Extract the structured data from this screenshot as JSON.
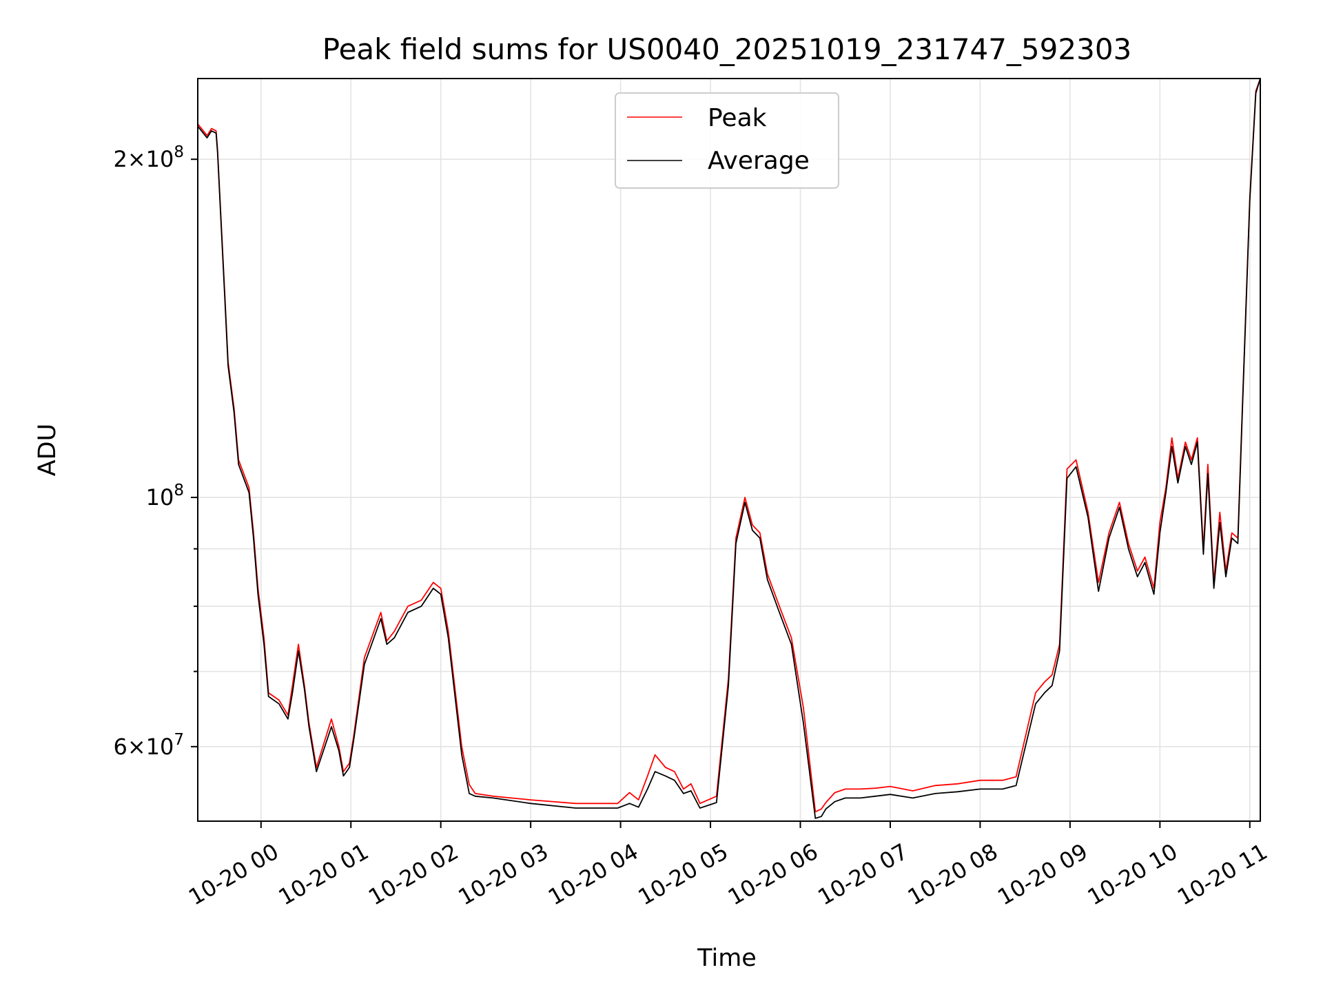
{
  "chart_data": {
    "type": "line",
    "title": "Peak field sums for US0040_20251019_231747_592303",
    "xlabel": "Time",
    "ylabel": "ADU",
    "y_scale": "log",
    "ylim": [
      51500000,
      236000000
    ],
    "xlim": [
      "2025-10-19 23:17:47",
      "2025-10-20 11:07:00"
    ],
    "grid": true,
    "legend_position": "upper-center",
    "x_ticks": [
      "10-20 00",
      "10-20 01",
      "10-20 02",
      "10-20 03",
      "10-20 04",
      "10-20 05",
      "10-20 06",
      "10-20 07",
      "10-20 08",
      "10-20 09",
      "10-20 10",
      "10-20 11"
    ],
    "x_tick_times": [
      "2025-10-20 00:00",
      "2025-10-20 01:00",
      "2025-10-20 02:00",
      "2025-10-20 03:00",
      "2025-10-20 04:00",
      "2025-10-20 05:00",
      "2025-10-20 06:00",
      "2025-10-20 07:00",
      "2025-10-20 08:00",
      "2025-10-20 09:00",
      "2025-10-20 10:00",
      "2025-10-20 11:00"
    ],
    "y_ticks": [
      {
        "value": 200000000,
        "mantissa": "2",
        "exponent": "8"
      },
      {
        "value": 100000000,
        "mantissa": "",
        "exponent": "8"
      },
      {
        "value": 60000000,
        "mantissa": "6",
        "exponent": "7"
      }
    ],
    "y_minor_ticks": [
      70000000,
      80000000,
      90000000
    ],
    "series": [
      {
        "name": "Peak",
        "color": "#ff0000",
        "x": [
          "2025-10-19 23:17:47",
          "2025-10-19 23:24",
          "2025-10-19 23:27",
          "2025-10-19 23:30",
          "2025-10-19 23:31",
          "2025-10-19 23:36",
          "2025-10-19 23:38",
          "2025-10-19 23:42",
          "2025-10-19 23:45",
          "2025-10-19 23:52",
          "2025-10-19 23:55",
          "2025-10-19 23:58",
          "2025-10-20 00:02",
          "2025-10-20 00:05",
          "2025-10-20 00:12",
          "2025-10-20 00:18",
          "2025-10-20 00:21",
          "2025-10-20 00:25",
          "2025-10-20 00:29",
          "2025-10-20 00:32",
          "2025-10-20 00:37",
          "2025-10-20 00:47",
          "2025-10-20 00:52",
          "2025-10-20 00:55",
          "2025-10-20 00:59",
          "2025-10-20 01:02",
          "2025-10-20 01:09",
          "2025-10-20 01:20",
          "2025-10-20 01:24",
          "2025-10-20 01:29",
          "2025-10-20 01:38",
          "2025-10-20 01:47",
          "2025-10-20 01:55",
          "2025-10-20 02:00",
          "2025-10-20 02:05",
          "2025-10-20 02:14",
          "2025-10-20 02:19",
          "2025-10-20 02:23",
          "2025-10-20 02:35",
          "2025-10-20 03:00",
          "2025-10-20 03:30",
          "2025-10-20 03:58",
          "2025-10-20 04:06",
          "2025-10-20 04:12",
          "2025-10-20 04:18",
          "2025-10-20 04:23",
          "2025-10-20 04:30",
          "2025-10-20 04:36",
          "2025-10-20 04:42",
          "2025-10-20 04:47",
          "2025-10-20 04:53",
          "2025-10-20 05:04",
          "2025-10-20 05:12",
          "2025-10-20 05:17",
          "2025-10-20 05:23",
          "2025-10-20 05:28",
          "2025-10-20 05:33",
          "2025-10-20 05:38",
          "2025-10-20 05:46",
          "2025-10-20 05:54",
          "2025-10-20 06:02",
          "2025-10-20 06:10",
          "2025-10-20 06:14",
          "2025-10-20 06:17",
          "2025-10-20 06:23",
          "2025-10-20 06:30",
          "2025-10-20 06:40",
          "2025-10-20 06:50",
          "2025-10-20 07:00",
          "2025-10-20 07:15",
          "2025-10-20 07:30",
          "2025-10-20 07:45",
          "2025-10-20 08:00",
          "2025-10-20 08:15",
          "2025-10-20 08:24",
          "2025-10-20 08:37",
          "2025-10-20 08:43",
          "2025-10-20 08:48",
          "2025-10-20 08:53",
          "2025-10-20 08:58",
          "2025-10-20 09:04",
          "2025-10-20 09:12",
          "2025-10-20 09:19",
          "2025-10-20 09:26",
          "2025-10-20 09:33",
          "2025-10-20 09:39",
          "2025-10-20 09:45",
          "2025-10-20 09:50",
          "2025-10-20 09:56",
          "2025-10-20 10:00",
          "2025-10-20 10:04",
          "2025-10-20 10:08",
          "2025-10-20 10:12",
          "2025-10-20 10:17",
          "2025-10-20 10:21",
          "2025-10-20 10:25",
          "2025-10-20 10:29",
          "2025-10-20 10:32",
          "2025-10-20 10:36",
          "2025-10-20 10:40",
          "2025-10-20 10:44",
          "2025-10-20 10:48",
          "2025-10-20 10:52",
          "2025-10-20 10:55",
          "2025-10-20 11:00",
          "2025-10-20 11:04",
          "2025-10-20 11:07"
        ],
        "values": [
          215000000,
          210000000,
          213000000,
          212000000,
          204000000,
          150000000,
          132000000,
          120000000,
          108000000,
          102000000,
          93000000,
          83000000,
          75000000,
          67000000,
          66000000,
          64000000,
          68000000,
          74000000,
          68000000,
          63000000,
          57500000,
          63500000,
          60000000,
          57000000,
          58000000,
          61500000,
          72000000,
          79000000,
          74500000,
          76000000,
          80000000,
          81000000,
          84000000,
          83000000,
          76000000,
          60000000,
          55500000,
          54500000,
          54200000,
          53800000,
          53400000,
          53400000,
          54600000,
          53800000,
          56500000,
          59000000,
          57500000,
          57000000,
          55000000,
          55600000,
          53400000,
          54200000,
          69000000,
          92000000,
          100000000,
          94500000,
          93000000,
          85500000,
          80000000,
          75000000,
          65000000,
          52500000,
          52800000,
          53500000,
          54600000,
          55000000,
          55000000,
          55100000,
          55300000,
          54800000,
          55400000,
          55600000,
          56000000,
          56000000,
          56400000,
          67000000,
          68500000,
          69500000,
          74000000,
          106000000,
          108000000,
          97000000,
          84000000,
          93000000,
          99000000,
          91000000,
          86000000,
          88500000,
          83000000,
          95000000,
          102000000,
          113000000,
          104000000,
          112000000,
          108000000,
          113000000,
          90000000,
          107000000,
          84000000,
          97000000,
          86000000,
          93000000,
          92000000,
          120000000,
          185000000,
          230000000,
          236000000
        ]
      },
      {
        "name": "Average",
        "color": "#000000",
        "x": [
          "2025-10-19 23:17:47",
          "2025-10-19 23:24",
          "2025-10-19 23:27",
          "2025-10-19 23:30",
          "2025-10-19 23:31",
          "2025-10-19 23:36",
          "2025-10-19 23:38",
          "2025-10-19 23:42",
          "2025-10-19 23:45",
          "2025-10-19 23:52",
          "2025-10-19 23:55",
          "2025-10-19 23:58",
          "2025-10-20 00:02",
          "2025-10-20 00:05",
          "2025-10-20 00:12",
          "2025-10-20 00:18",
          "2025-10-20 00:21",
          "2025-10-20 00:25",
          "2025-10-20 00:29",
          "2025-10-20 00:32",
          "2025-10-20 00:37",
          "2025-10-20 00:47",
          "2025-10-20 00:52",
          "2025-10-20 00:55",
          "2025-10-20 00:59",
          "2025-10-20 01:02",
          "2025-10-20 01:09",
          "2025-10-20 01:20",
          "2025-10-20 01:24",
          "2025-10-20 01:29",
          "2025-10-20 01:38",
          "2025-10-20 01:47",
          "2025-10-20 01:55",
          "2025-10-20 02:00",
          "2025-10-20 02:05",
          "2025-10-20 02:14",
          "2025-10-20 02:19",
          "2025-10-20 02:23",
          "2025-10-20 02:35",
          "2025-10-20 03:00",
          "2025-10-20 03:30",
          "2025-10-20 03:58",
          "2025-10-20 04:06",
          "2025-10-20 04:12",
          "2025-10-20 04:18",
          "2025-10-20 04:23",
          "2025-10-20 04:30",
          "2025-10-20 04:36",
          "2025-10-20 04:42",
          "2025-10-20 04:47",
          "2025-10-20 04:53",
          "2025-10-20 05:04",
          "2025-10-20 05:12",
          "2025-10-20 05:17",
          "2025-10-20 05:23",
          "2025-10-20 05:28",
          "2025-10-20 05:33",
          "2025-10-20 05:38",
          "2025-10-20 05:46",
          "2025-10-20 05:54",
          "2025-10-20 06:02",
          "2025-10-20 06:10",
          "2025-10-20 06:14",
          "2025-10-20 06:17",
          "2025-10-20 06:23",
          "2025-10-20 06:30",
          "2025-10-20 06:40",
          "2025-10-20 06:50",
          "2025-10-20 07:00",
          "2025-10-20 07:15",
          "2025-10-20 07:30",
          "2025-10-20 07:45",
          "2025-10-20 08:00",
          "2025-10-20 08:15",
          "2025-10-20 08:24",
          "2025-10-20 08:37",
          "2025-10-20 08:43",
          "2025-10-20 08:48",
          "2025-10-20 08:53",
          "2025-10-20 08:58",
          "2025-10-20 09:04",
          "2025-10-20 09:12",
          "2025-10-20 09:19",
          "2025-10-20 09:26",
          "2025-10-20 09:33",
          "2025-10-20 09:39",
          "2025-10-20 09:45",
          "2025-10-20 09:50",
          "2025-10-20 09:56",
          "2025-10-20 10:00",
          "2025-10-20 10:04",
          "2025-10-20 10:08",
          "2025-10-20 10:12",
          "2025-10-20 10:17",
          "2025-10-20 10:21",
          "2025-10-20 10:25",
          "2025-10-20 10:29",
          "2025-10-20 10:32",
          "2025-10-20 10:36",
          "2025-10-20 10:40",
          "2025-10-20 10:44",
          "2025-10-20 10:48",
          "2025-10-20 10:52",
          "2025-10-20 10:55",
          "2025-10-20 11:00",
          "2025-10-20 11:04",
          "2025-10-20 11:07"
        ],
        "values": [
          214000000,
          209000000,
          212000000,
          211000000,
          203000000,
          149000000,
          131000000,
          119000000,
          107000000,
          101000000,
          92000000,
          82000000,
          74000000,
          66500000,
          65500000,
          63500000,
          67000000,
          73000000,
          67500000,
          62500000,
          57000000,
          62500000,
          59500000,
          56500000,
          57500000,
          61000000,
          71000000,
          78000000,
          74000000,
          75000000,
          79000000,
          80000000,
          83000000,
          82000000,
          75000000,
          59000000,
          54500000,
          54200000,
          54000000,
          53400000,
          52900000,
          52900000,
          53400000,
          53000000,
          55000000,
          57000000,
          56500000,
          56000000,
          54500000,
          54800000,
          52900000,
          53500000,
          68000000,
          91000000,
          99000000,
          93500000,
          92000000,
          84500000,
          79000000,
          74000000,
          63000000,
          51800000,
          52000000,
          52800000,
          53600000,
          54000000,
          54000000,
          54200000,
          54400000,
          54000000,
          54500000,
          54700000,
          55000000,
          55000000,
          55400000,
          65500000,
          67000000,
          68000000,
          73000000,
          104000000,
          106500000,
          96000000,
          82500000,
          92000000,
          98000000,
          90000000,
          85000000,
          87500000,
          82000000,
          93000000,
          101000000,
          111000000,
          103000000,
          111000000,
          107000000,
          112000000,
          89000000,
          105000000,
          83000000,
          95000000,
          85000000,
          92000000,
          91000000,
          119000000,
          184000000,
          229000000,
          236000000
        ]
      }
    ]
  }
}
